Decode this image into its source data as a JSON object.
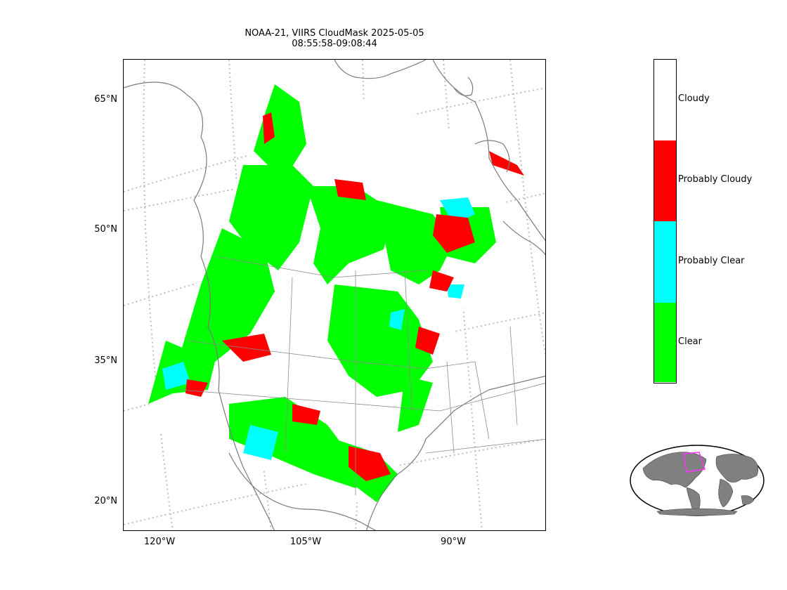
{
  "title": {
    "line1": "NOAA-21, VIIRS CloudMask 2025-05-05",
    "line2": "08:55:58-09:08:44"
  },
  "axes": {
    "lat_labels": [
      "65°N",
      "50°N",
      "35°N",
      "20°N"
    ],
    "lon_labels": [
      "120°W",
      "105°W",
      "90°W"
    ]
  },
  "legend": {
    "classes": [
      {
        "label": "Cloudy",
        "color": "#ffffff"
      },
      {
        "label": "Probably Cloudy",
        "color": "#ff0000"
      },
      {
        "label": "Probably Clear",
        "color": "#00ffff"
      },
      {
        "label": "Clear",
        "color": "#00ff00"
      }
    ]
  },
  "colors": {
    "clear": "#00ff00",
    "probably_clear": "#00ffff",
    "probably_cloudy": "#ff0000",
    "cloudy": "#ffffff",
    "coastline": "#7a7a7a",
    "graticule": "#bdbdbd",
    "inset_land": "#808080",
    "inset_box": "#ff33ff"
  }
}
